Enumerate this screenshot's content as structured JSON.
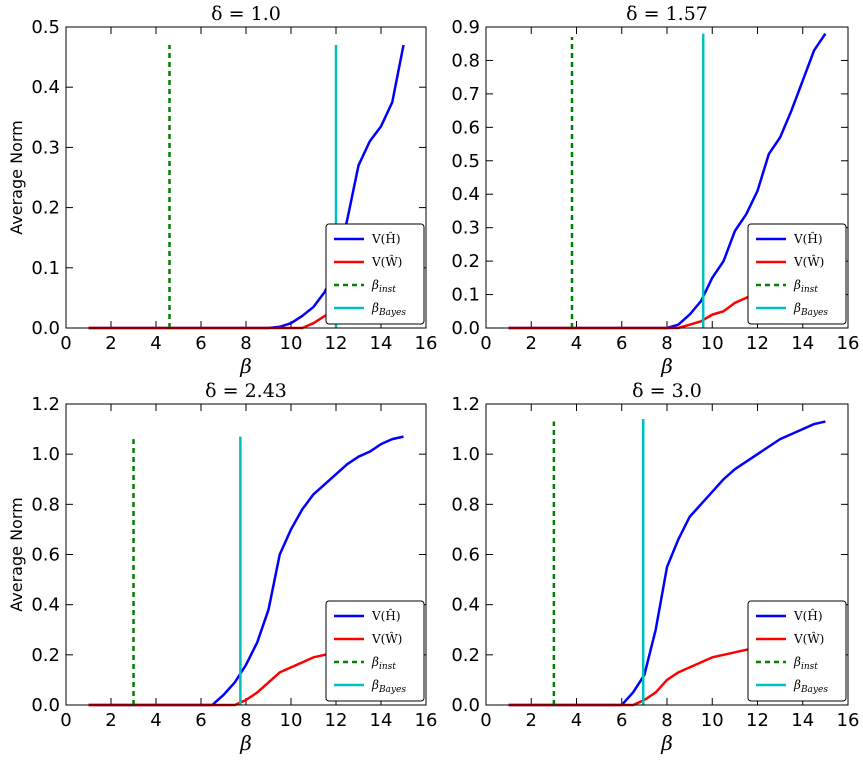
{
  "chart_data": [
    {
      "type": "line",
      "title": "δ = 1.0",
      "xlabel": "β",
      "ylabel": "Average Norm",
      "xlim": [
        0,
        16
      ],
      "ylim": [
        0,
        0.5
      ],
      "xticks": [
        0,
        2,
        4,
        6,
        8,
        10,
        12,
        14,
        16
      ],
      "yticks": [
        0.0,
        0.1,
        0.2,
        0.3,
        0.4,
        0.5
      ],
      "xtick_labels": [
        "0",
        "2",
        "4",
        "6",
        "8",
        "10",
        "12",
        "14",
        "16"
      ],
      "ytick_labels": [
        "0.0",
        "0.1",
        "0.2",
        "0.3",
        "0.4",
        "0.5"
      ],
      "series": [
        {
          "name": "V(Ĥ)",
          "color": "#0000ff",
          "style": "solid",
          "x": [
            1,
            9,
            9.5,
            10,
            10.5,
            11,
            11.5,
            12,
            12.5,
            13,
            13.5,
            14,
            14.5,
            15
          ],
          "y": [
            0,
            0,
            0.002,
            0.008,
            0.02,
            0.035,
            0.06,
            0.1,
            0.18,
            0.27,
            0.31,
            0.335,
            0.375,
            0.47
          ]
        },
        {
          "name": "V(Ŵ)",
          "color": "#ff0000",
          "style": "solid",
          "x": [
            1,
            10.5,
            11,
            11.5,
            12,
            12.5
          ],
          "y": [
            0,
            0,
            0.008,
            0.02,
            0.03,
            0.045
          ]
        },
        {
          "name": "β_inst",
          "color": "#008000",
          "style": "dashed",
          "vline": 4.6,
          "ymax": 0.47
        },
        {
          "name": "β_Bayes",
          "color": "#00bfbf",
          "style": "solid",
          "vline": 12.0,
          "ymax": 0.47
        }
      ],
      "legend": "lower-right"
    },
    {
      "type": "line",
      "title": "δ = 1.57",
      "xlabel": "β",
      "ylabel": "",
      "xlim": [
        0,
        16
      ],
      "ylim": [
        0,
        0.9
      ],
      "xticks": [
        0,
        2,
        4,
        6,
        8,
        10,
        12,
        14,
        16
      ],
      "yticks": [
        0.0,
        0.1,
        0.2,
        0.3,
        0.4,
        0.5,
        0.6,
        0.7,
        0.8,
        0.9
      ],
      "xtick_labels": [
        "0",
        "2",
        "4",
        "6",
        "8",
        "10",
        "12",
        "14",
        "16"
      ],
      "ytick_labels": [
        "0.0",
        "0.1",
        "0.2",
        "0.3",
        "0.4",
        "0.5",
        "0.6",
        "0.7",
        "0.8",
        "0.9"
      ],
      "series": [
        {
          "name": "V(Ĥ)",
          "color": "#0000ff",
          "style": "solid",
          "x": [
            1,
            8,
            8.5,
            9,
            9.5,
            10,
            10.5,
            11,
            11.5,
            12,
            12.5,
            13,
            13.5,
            14,
            14.5,
            15
          ],
          "y": [
            0,
            0,
            0.01,
            0.04,
            0.08,
            0.15,
            0.2,
            0.29,
            0.34,
            0.41,
            0.52,
            0.57,
            0.65,
            0.74,
            0.83,
            0.88
          ]
        },
        {
          "name": "V(Ŵ)",
          "color": "#ff0000",
          "style": "solid",
          "x": [
            1,
            8.5,
            9,
            9.5,
            10,
            10.5,
            11,
            11.5,
            12,
            12.5
          ],
          "y": [
            0,
            0,
            0.01,
            0.02,
            0.04,
            0.05,
            0.075,
            0.09,
            0.11,
            0.13
          ]
        },
        {
          "name": "β_inst",
          "color": "#008000",
          "style": "dashed",
          "vline": 3.8,
          "ymax": 0.87
        },
        {
          "name": "β_Bayes",
          "color": "#00bfbf",
          "style": "solid",
          "vline": 9.6,
          "ymax": 0.88
        }
      ],
      "legend": "lower-right"
    },
    {
      "type": "line",
      "title": "δ = 2.43",
      "xlabel": "β",
      "ylabel": "Average Norm",
      "xlim": [
        0,
        16
      ],
      "ylim": [
        0,
        1.2
      ],
      "xticks": [
        0,
        2,
        4,
        6,
        8,
        10,
        12,
        14,
        16
      ],
      "yticks": [
        0.0,
        0.2,
        0.4,
        0.6,
        0.8,
        1.0,
        1.2
      ],
      "xtick_labels": [
        "0",
        "2",
        "4",
        "6",
        "8",
        "10",
        "12",
        "14",
        "16"
      ],
      "ytick_labels": [
        "0.0",
        "0.2",
        "0.4",
        "0.6",
        "0.8",
        "1.0",
        "1.2"
      ],
      "series": [
        {
          "name": "V(Ĥ)",
          "color": "#0000ff",
          "style": "solid",
          "x": [
            1,
            6.5,
            7,
            7.5,
            8,
            8.5,
            9,
            9.5,
            10,
            10.5,
            11,
            11.5,
            12,
            12.5,
            13,
            13.5,
            14,
            14.5,
            15
          ],
          "y": [
            0,
            0,
            0.04,
            0.09,
            0.16,
            0.25,
            0.38,
            0.6,
            0.7,
            0.78,
            0.84,
            0.88,
            0.92,
            0.96,
            0.99,
            1.01,
            1.04,
            1.06,
            1.07
          ]
        },
        {
          "name": "V(Ŵ)",
          "color": "#ff0000",
          "style": "solid",
          "x": [
            1,
            7.5,
            8,
            8.5,
            9,
            9.5,
            10,
            10.5,
            11,
            11.5,
            12,
            12.5
          ],
          "y": [
            0,
            0,
            0.02,
            0.05,
            0.09,
            0.13,
            0.15,
            0.17,
            0.19,
            0.2,
            0.21,
            0.22
          ]
        },
        {
          "name": "β_inst",
          "color": "#008000",
          "style": "dashed",
          "vline": 3.0,
          "ymax": 1.06
        },
        {
          "name": "β_Bayes",
          "color": "#00bfbf",
          "style": "solid",
          "vline": 7.75,
          "ymax": 1.07
        }
      ],
      "legend": "lower-right"
    },
    {
      "type": "line",
      "title": "δ = 3.0",
      "xlabel": "β",
      "ylabel": "",
      "xlim": [
        0,
        16
      ],
      "ylim": [
        0,
        1.2
      ],
      "xticks": [
        0,
        2,
        4,
        6,
        8,
        10,
        12,
        14,
        16
      ],
      "yticks": [
        0.0,
        0.2,
        0.4,
        0.6,
        0.8,
        1.0,
        1.2
      ],
      "xtick_labels": [
        "0",
        "2",
        "4",
        "6",
        "8",
        "10",
        "12",
        "14",
        "16"
      ],
      "ytick_labels": [
        "0.0",
        "0.2",
        "0.4",
        "0.6",
        "0.8",
        "1.0",
        "1.2"
      ],
      "series": [
        {
          "name": "V(Ĥ)",
          "color": "#0000ff",
          "style": "solid",
          "x": [
            1,
            6,
            6.5,
            7,
            7.5,
            8,
            8.5,
            9,
            9.5,
            10,
            10.5,
            11,
            11.5,
            12,
            12.5,
            13,
            13.5,
            14,
            14.5,
            15
          ],
          "y": [
            0,
            0,
            0.05,
            0.12,
            0.3,
            0.55,
            0.66,
            0.75,
            0.8,
            0.85,
            0.9,
            0.94,
            0.97,
            1.0,
            1.03,
            1.06,
            1.08,
            1.1,
            1.12,
            1.13
          ]
        },
        {
          "name": "V(Ŵ)",
          "color": "#ff0000",
          "style": "solid",
          "x": [
            1,
            6.5,
            7,
            7.5,
            8,
            8.5,
            9,
            9.5,
            10,
            10.5,
            11,
            11.5,
            12,
            12.5
          ],
          "y": [
            0,
            0,
            0.02,
            0.05,
            0.1,
            0.13,
            0.15,
            0.17,
            0.19,
            0.2,
            0.21,
            0.22,
            0.23,
            0.24
          ]
        },
        {
          "name": "β_inst",
          "color": "#008000",
          "style": "dashed",
          "vline": 3.0,
          "ymax": 1.13
        },
        {
          "name": "β_Bayes",
          "color": "#00bfbf",
          "style": "solid",
          "vline": 6.95,
          "ymax": 1.14
        }
      ],
      "legend": "lower-right"
    }
  ]
}
